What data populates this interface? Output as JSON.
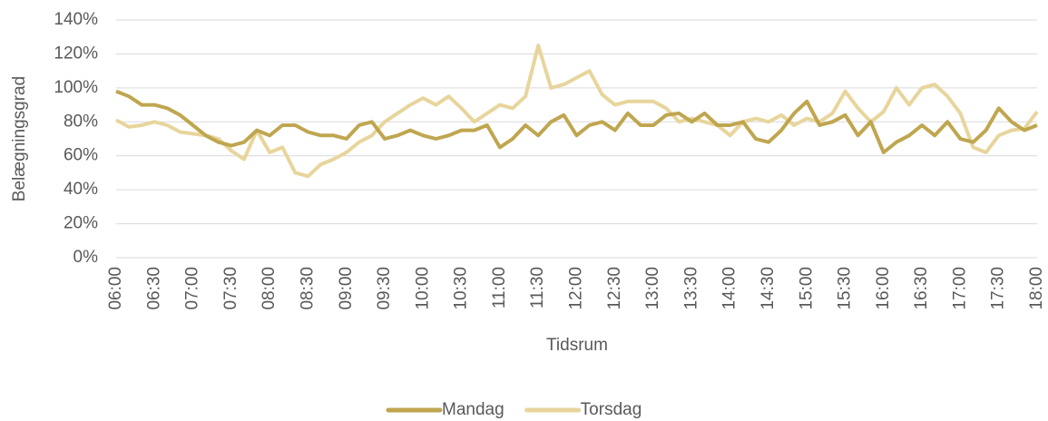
{
  "chart_data": {
    "type": "line",
    "x_label": "Tidsrum",
    "y_label": "Belægningsgrad",
    "categories": [
      "06:00",
      null,
      null,
      "06:30",
      null,
      null,
      "07:00",
      null,
      null,
      "07:30",
      null,
      null,
      "08:00",
      null,
      null,
      "08:30",
      null,
      null,
      "09:00",
      null,
      null,
      "09:30",
      null,
      null,
      "10:00",
      null,
      null,
      "10:30",
      null,
      null,
      "11:00",
      null,
      null,
      "11:30",
      null,
      null,
      "12:00",
      null,
      null,
      "12:30",
      null,
      null,
      "13:00",
      null,
      null,
      "13:30",
      null,
      null,
      "14:00",
      null,
      null,
      "14:30",
      null,
      null,
      "15:00",
      null,
      null,
      "15:30",
      null,
      null,
      "16:00",
      null,
      null,
      "16:30",
      null,
      null,
      "17:00",
      null,
      null,
      "17:30",
      null,
      null,
      "18:00"
    ],
    "series": [
      {
        "name": "Mandag",
        "color": "#bfa64f",
        "values": [
          98,
          95,
          90,
          90,
          88,
          84,
          78,
          72,
          68,
          66,
          68,
          75,
          72,
          78,
          78,
          74,
          72,
          72,
          70,
          78,
          80,
          70,
          72,
          75,
          72,
          70,
          72,
          75,
          75,
          78,
          65,
          70,
          78,
          72,
          80,
          84,
          72,
          78,
          80,
          75,
          85,
          78,
          78,
          84,
          85,
          80,
          85,
          78,
          78,
          80,
          70,
          68,
          75,
          85,
          92,
          78,
          80,
          84,
          72,
          80,
          62,
          68,
          72,
          78,
          72,
          80,
          70,
          68,
          75,
          88,
          80,
          75,
          78
        ]
      },
      {
        "name": "Torsdag",
        "color": "#e8d59c",
        "values": [
          81,
          77,
          78,
          80,
          78,
          74,
          73,
          72,
          70,
          63,
          58,
          75,
          62,
          65,
          50,
          48,
          55,
          58,
          62,
          68,
          72,
          80,
          85,
          90,
          94,
          90,
          95,
          88,
          80,
          85,
          90,
          88,
          95,
          125,
          100,
          102,
          106,
          110,
          96,
          90,
          92,
          92,
          92,
          88,
          80,
          82,
          80,
          78,
          72,
          80,
          82,
          80,
          84,
          78,
          82,
          80,
          85,
          98,
          88,
          80,
          86,
          100,
          90,
          100,
          102,
          95,
          85,
          65,
          62,
          72,
          75,
          76,
          86
        ]
      }
    ],
    "ylim": [
      0,
      140
    ],
    "yticks": [
      {
        "value": 0,
        "label": "0%"
      },
      {
        "value": 20,
        "label": "20%"
      },
      {
        "value": 40,
        "label": "40%"
      },
      {
        "value": 60,
        "label": "60%"
      },
      {
        "value": 80,
        "label": "80%"
      },
      {
        "value": 100,
        "label": "100%"
      },
      {
        "value": 120,
        "label": "120%"
      },
      {
        "value": 140,
        "label": "140%"
      }
    ],
    "grid": true,
    "legend": "bottom"
  }
}
